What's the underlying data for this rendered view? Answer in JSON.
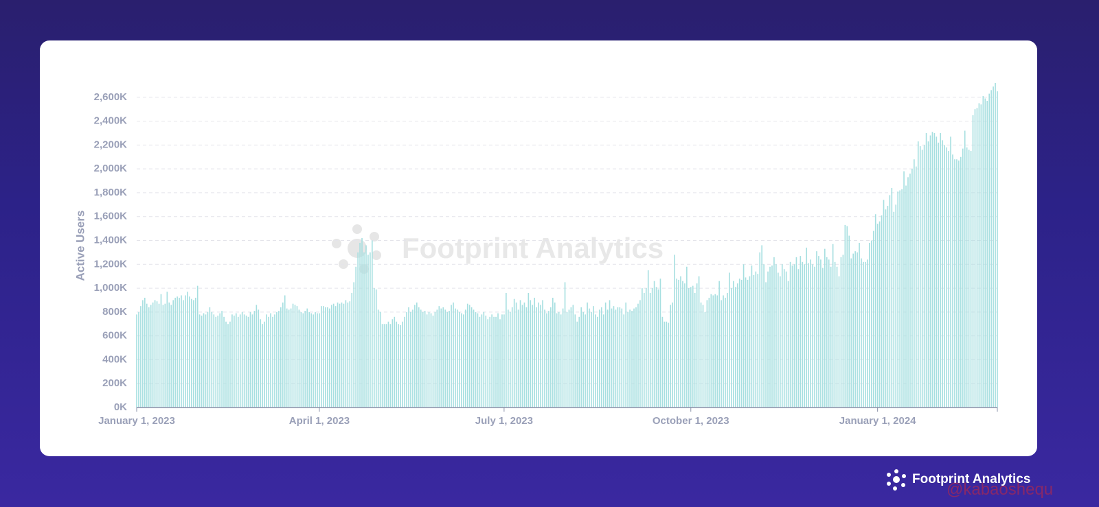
{
  "chart_data": {
    "type": "bar",
    "y_label": "Active Users",
    "color": "#a6dfe0",
    "grid": true,
    "watermark": "Footprint Analytics",
    "xlim": [
      "2023-01-01",
      "2024-02-29"
    ],
    "xticks": [
      {
        "value": "2023-01-01",
        "label": "January 1, 2023"
      },
      {
        "value": "2023-04-01",
        "label": "April 1, 2023"
      },
      {
        "value": "2023-07-01",
        "label": "July 1, 2023"
      },
      {
        "value": "2023-10-01",
        "label": "October 1, 2023"
      },
      {
        "value": "2024-01-01",
        "label": "January 1, 2024"
      }
    ],
    "ylim": [
      0,
      2800
    ],
    "yticks": [
      {
        "value": 0,
        "label": "0K"
      },
      {
        "value": 200,
        "label": "200K"
      },
      {
        "value": 400,
        "label": "400K"
      },
      {
        "value": 600,
        "label": "600K"
      },
      {
        "value": 800,
        "label": "800K"
      },
      {
        "value": 1000,
        "label": "1,000K"
      },
      {
        "value": 1200,
        "label": "1,200K"
      },
      {
        "value": 1400,
        "label": "1,400K"
      },
      {
        "value": 1600,
        "label": "1,600K"
      },
      {
        "value": 1800,
        "label": "1,800K"
      },
      {
        "value": 2000,
        "label": "2,000K"
      },
      {
        "value": 2200,
        "label": "2,200K"
      },
      {
        "value": 2400,
        "label": "2,400K"
      },
      {
        "value": 2600,
        "label": "2,600K"
      }
    ],
    "x": [
      "2023-01-01",
      "2023-01-02",
      "2023-01-03",
      "2023-01-04",
      "2023-01-05",
      "2023-01-06",
      "2023-01-07",
      "2023-01-08",
      "2023-01-09",
      "2023-01-10",
      "2023-01-11",
      "2023-01-12",
      "2023-01-13",
      "2023-01-14",
      "2023-01-15",
      "2023-01-16",
      "2023-01-17",
      "2023-01-18",
      "2023-01-19",
      "2023-01-20",
      "2023-01-21",
      "2023-01-22",
      "2023-01-23",
      "2023-01-24",
      "2023-01-25",
      "2023-01-26",
      "2023-01-27",
      "2023-01-28",
      "2023-01-29",
      "2023-01-30",
      "2023-01-31",
      "2023-02-01",
      "2023-02-02",
      "2023-02-03",
      "2023-02-04",
      "2023-02-05",
      "2023-02-06",
      "2023-02-07",
      "2023-02-08",
      "2023-02-09",
      "2023-02-10",
      "2023-02-11",
      "2023-02-12",
      "2023-02-13",
      "2023-02-14",
      "2023-02-15",
      "2023-02-16",
      "2023-02-17",
      "2023-02-18",
      "2023-02-19",
      "2023-02-20",
      "2023-02-21",
      "2023-02-22",
      "2023-02-23",
      "2023-02-24",
      "2023-02-25",
      "2023-02-26",
      "2023-02-27",
      "2023-02-28",
      "2023-03-01",
      "2023-03-02",
      "2023-03-03",
      "2023-03-04",
      "2023-03-05",
      "2023-03-06",
      "2023-03-07",
      "2023-03-08",
      "2023-03-09",
      "2023-03-10",
      "2023-03-11",
      "2023-03-12",
      "2023-03-13",
      "2023-03-14",
      "2023-03-15",
      "2023-03-16",
      "2023-03-17",
      "2023-03-18",
      "2023-03-19",
      "2023-03-20",
      "2023-03-21",
      "2023-03-22",
      "2023-03-23",
      "2023-03-24",
      "2023-03-25",
      "2023-03-26",
      "2023-03-27",
      "2023-03-28",
      "2023-03-29",
      "2023-03-30",
      "2023-03-31",
      "2023-04-01",
      "2023-04-02",
      "2023-04-03",
      "2023-04-04",
      "2023-04-05",
      "2023-04-06",
      "2023-04-07",
      "2023-04-08",
      "2023-04-09",
      "2023-04-10",
      "2023-04-11",
      "2023-04-12",
      "2023-04-13",
      "2023-04-14",
      "2023-04-15",
      "2023-04-16",
      "2023-04-17",
      "2023-04-18",
      "2023-04-19",
      "2023-04-20",
      "2023-04-21",
      "2023-04-22",
      "2023-04-23",
      "2023-04-24",
      "2023-04-25",
      "2023-04-26",
      "2023-04-27",
      "2023-04-28",
      "2023-04-29",
      "2023-04-30",
      "2023-05-01",
      "2023-05-02",
      "2023-05-03",
      "2023-05-04",
      "2023-05-05",
      "2023-05-06",
      "2023-05-07",
      "2023-05-08",
      "2023-05-09",
      "2023-05-10",
      "2023-05-11",
      "2023-05-12",
      "2023-05-13",
      "2023-05-14",
      "2023-05-15",
      "2023-05-16",
      "2023-05-17",
      "2023-05-18",
      "2023-05-19",
      "2023-05-20",
      "2023-05-21",
      "2023-05-22",
      "2023-05-23",
      "2023-05-24",
      "2023-05-25",
      "2023-05-26",
      "2023-05-27",
      "2023-05-28",
      "2023-05-29",
      "2023-05-30",
      "2023-05-31",
      "2023-06-01",
      "2023-06-02",
      "2023-06-03",
      "2023-06-04",
      "2023-06-05",
      "2023-06-06",
      "2023-06-07",
      "2023-06-08",
      "2023-06-09",
      "2023-06-10",
      "2023-06-11",
      "2023-06-12",
      "2023-06-13",
      "2023-06-14",
      "2023-06-15",
      "2023-06-16",
      "2023-06-17",
      "2023-06-18",
      "2023-06-19",
      "2023-06-20",
      "2023-06-21",
      "2023-06-22",
      "2023-06-23",
      "2023-06-24",
      "2023-06-25",
      "2023-06-26",
      "2023-06-27",
      "2023-06-28",
      "2023-06-29",
      "2023-06-30",
      "2023-07-01",
      "2023-07-02",
      "2023-07-03",
      "2023-07-04",
      "2023-07-05",
      "2023-07-06",
      "2023-07-07",
      "2023-07-08",
      "2023-07-09",
      "2023-07-10",
      "2023-07-11",
      "2023-07-12",
      "2023-07-13",
      "2023-07-14",
      "2023-07-15",
      "2023-07-16",
      "2023-07-17",
      "2023-07-18",
      "2023-07-19",
      "2023-07-20",
      "2023-07-21",
      "2023-07-22",
      "2023-07-23",
      "2023-07-24",
      "2023-07-25",
      "2023-07-26",
      "2023-07-27",
      "2023-07-28",
      "2023-07-29",
      "2023-07-30",
      "2023-07-31",
      "2023-08-01",
      "2023-08-02",
      "2023-08-03",
      "2023-08-04",
      "2023-08-05",
      "2023-08-06",
      "2023-08-07",
      "2023-08-08",
      "2023-08-09",
      "2023-08-10",
      "2023-08-11",
      "2023-08-12",
      "2023-08-13",
      "2023-08-14",
      "2023-08-15",
      "2023-08-16",
      "2023-08-17",
      "2023-08-18",
      "2023-08-19",
      "2023-08-20",
      "2023-08-21",
      "2023-08-22",
      "2023-08-23",
      "2023-08-24",
      "2023-08-25",
      "2023-08-26",
      "2023-08-27",
      "2023-08-28",
      "2023-08-29",
      "2023-08-30",
      "2023-08-31",
      "2023-09-01",
      "2023-09-02",
      "2023-09-03",
      "2023-09-04",
      "2023-09-05",
      "2023-09-06",
      "2023-09-07",
      "2023-09-08",
      "2023-09-09",
      "2023-09-10",
      "2023-09-11",
      "2023-09-12",
      "2023-09-13",
      "2023-09-14",
      "2023-09-15",
      "2023-09-16",
      "2023-09-17",
      "2023-09-18",
      "2023-09-19",
      "2023-09-20",
      "2023-09-21",
      "2023-09-22",
      "2023-09-23",
      "2023-09-24",
      "2023-09-25",
      "2023-09-26",
      "2023-09-27",
      "2023-09-28",
      "2023-09-29",
      "2023-09-30",
      "2023-10-01",
      "2023-10-02",
      "2023-10-03",
      "2023-10-04",
      "2023-10-05",
      "2023-10-06",
      "2023-10-07",
      "2023-10-08",
      "2023-10-09",
      "2023-10-10",
      "2023-10-11",
      "2023-10-12",
      "2023-10-13",
      "2023-10-14",
      "2023-10-15",
      "2023-10-16",
      "2023-10-17",
      "2023-10-18",
      "2023-10-19",
      "2023-10-20",
      "2023-10-21",
      "2023-10-22",
      "2023-10-23",
      "2023-10-24",
      "2023-10-25",
      "2023-10-26",
      "2023-10-27",
      "2023-10-28",
      "2023-10-29",
      "2023-10-30",
      "2023-10-31",
      "2023-11-01",
      "2023-11-02",
      "2023-11-03",
      "2023-11-04",
      "2023-11-05",
      "2023-11-06",
      "2023-11-07",
      "2023-11-08",
      "2023-11-09",
      "2023-11-10",
      "2023-11-11",
      "2023-11-12",
      "2023-11-13",
      "2023-11-14",
      "2023-11-15",
      "2023-11-16",
      "2023-11-17",
      "2023-11-18",
      "2023-11-19",
      "2023-11-20",
      "2023-11-21",
      "2023-11-22",
      "2023-11-23",
      "2023-11-24",
      "2023-11-25",
      "2023-11-26",
      "2023-11-27",
      "2023-11-28",
      "2023-11-29",
      "2023-11-30",
      "2023-12-01",
      "2023-12-02",
      "2023-12-03",
      "2023-12-04",
      "2023-12-05",
      "2023-12-06",
      "2023-12-07",
      "2023-12-08",
      "2023-12-09",
      "2023-12-10",
      "2023-12-11",
      "2023-12-12",
      "2023-12-13",
      "2023-12-14",
      "2023-12-15",
      "2023-12-16",
      "2023-12-17",
      "2023-12-18",
      "2023-12-19",
      "2023-12-20",
      "2023-12-21",
      "2023-12-22",
      "2023-12-23",
      "2023-12-24",
      "2023-12-25",
      "2023-12-26",
      "2023-12-27",
      "2023-12-28",
      "2023-12-29",
      "2023-12-30",
      "2023-12-31",
      "2024-01-01",
      "2024-01-02",
      "2024-01-03",
      "2024-01-04",
      "2024-01-05",
      "2024-01-06",
      "2024-01-07",
      "2024-01-08",
      "2024-01-09",
      "2024-01-10",
      "2024-01-11",
      "2024-01-12",
      "2024-01-13",
      "2024-01-14",
      "2024-01-15",
      "2024-01-16",
      "2024-01-17",
      "2024-01-18",
      "2024-01-19",
      "2024-01-20",
      "2024-01-21",
      "2024-01-22",
      "2024-01-23",
      "2024-01-24",
      "2024-01-25",
      "2024-01-26",
      "2024-01-27",
      "2024-01-28",
      "2024-01-29",
      "2024-01-30",
      "2024-01-31",
      "2024-02-01",
      "2024-02-02",
      "2024-02-03",
      "2024-02-04",
      "2024-02-05",
      "2024-02-06",
      "2024-02-07",
      "2024-02-08",
      "2024-02-09",
      "2024-02-10",
      "2024-02-11",
      "2024-02-12",
      "2024-02-13",
      "2024-02-14",
      "2024-02-15",
      "2024-02-16",
      "2024-02-17",
      "2024-02-18",
      "2024-02-19",
      "2024-02-20",
      "2024-02-21",
      "2024-02-22",
      "2024-02-23",
      "2024-02-24",
      "2024-02-25",
      "2024-02-26",
      "2024-02-27",
      "2024-02-28",
      "2024-02-29"
    ],
    "values": [
      780,
      800,
      850,
      900,
      920,
      870,
      840,
      860,
      880,
      900,
      890,
      870,
      950,
      860,
      870,
      970,
      880,
      860,
      900,
      920,
      930,
      920,
      940,
      900,
      940,
      970,
      930,
      910,
      900,
      920,
      1020,
      780,
      770,
      790,
      780,
      800,
      840,
      800,
      780,
      760,
      770,
      790,
      810,
      760,
      720,
      700,
      720,
      780,
      770,
      790,
      760,
      780,
      800,
      780,
      770,
      760,
      800,
      780,
      810,
      860,
      820,
      740,
      700,
      720,
      780,
      760,
      790,
      760,
      780,
      800,
      810,
      840,
      880,
      940,
      830,
      820,
      830,
      870,
      860,
      850,
      820,
      800,
      790,
      810,
      830,
      800,
      790,
      780,
      800,
      790,
      790,
      850,
      850,
      840,
      840,
      830,
      860,
      870,
      850,
      880,
      870,
      880,
      870,
      900,
      880,
      890,
      960,
      1050,
      1180,
      1300,
      1380,
      1420,
      1300,
      1360,
      1280,
      1300,
      1400,
      1000,
      990,
      820,
      800,
      700,
      700,
      700,
      720,
      700,
      740,
      760,
      720,
      700,
      690,
      720,
      760,
      800,
      840,
      800,
      820,
      860,
      880,
      840,
      820,
      800,
      810,
      780,
      800,
      790,
      770,
      800,
      820,
      850,
      830,
      840,
      820,
      800,
      810,
      860,
      880,
      830,
      820,
      800,
      790,
      780,
      820,
      870,
      860,
      840,
      820,
      800,
      790,
      760,
      780,
      800,
      770,
      740,
      760,
      780,
      760,
      760,
      790,
      740,
      780,
      780,
      960,
      820,
      800,
      840,
      910,
      880,
      820,
      900,
      860,
      880,
      840,
      960,
      900,
      860,
      920,
      840,
      880,
      860,
      900,
      820,
      790,
      810,
      840,
      920,
      880,
      790,
      800,
      780,
      830,
      1050,
      800,
      820,
      840,
      860,
      780,
      720,
      760,
      840,
      800,
      780,
      880,
      830,
      800,
      850,
      780,
      760,
      820,
      840,
      780,
      880,
      820,
      900,
      830,
      850,
      820,
      840,
      840,
      830,
      780,
      880,
      800,
      820,
      810,
      830,
      840,
      870,
      900,
      1000,
      960,
      1000,
      1150,
      960,
      1000,
      1060,
      1010,
      990,
      1080,
      760,
      720,
      720,
      710,
      860,
      880,
      1280,
      1080,
      1070,
      1100,
      1060,
      1040,
      1180,
      1000,
      1010,
      1020,
      960,
      1040,
      1100,
      880,
      860,
      800,
      900,
      920,
      950,
      940,
      950,
      940,
      1060,
      900,
      940,
      920,
      960,
      1130,
      1000,
      1060,
      1010,
      1040,
      1080,
      1070,
      1200,
      1090,
      1070,
      1100,
      1190,
      1110,
      1140,
      1120,
      1300,
      1360,
      1200,
      1050,
      1140,
      1180,
      1190,
      1260,
      1200,
      1130,
      1100,
      1200,
      1160,
      1140,
      1060,
      1220,
      1190,
      1200,
      1260,
      1160,
      1270,
      1220,
      1200,
      1340,
      1210,
      1240,
      1200,
      1180,
      1310,
      1270,
      1240,
      1170,
      1330,
      1260,
      1240,
      1180,
      1370,
      1220,
      1180,
      1100,
      1260,
      1280,
      1530,
      1520,
      1440,
      1250,
      1290,
      1310,
      1300,
      1380,
      1250,
      1220,
      1220,
      1240,
      1380,
      1400,
      1480,
      1620,
      1540,
      1560,
      1610,
      1740,
      1660,
      1690,
      1780,
      1840,
      1640,
      1700,
      1810,
      1820,
      1830,
      1980,
      1860,
      1930,
      1960,
      2000,
      2080,
      2020,
      2230,
      2190,
      2160,
      2200,
      2300,
      2230,
      2280,
      2310,
      2300,
      2270,
      2220,
      2300,
      2240,
      2200,
      2180,
      2150,
      2270,
      2120,
      2080,
      2080,
      2070,
      2100,
      2170,
      2320,
      2180,
      2160,
      2150,
      2450,
      2500,
      2510,
      2550,
      2540,
      2610,
      2590,
      2570,
      2630,
      2660,
      2690,
      2720,
      2650
    ]
  },
  "brand": "Footprint Analytics",
  "credit": "@kabaoshequ"
}
